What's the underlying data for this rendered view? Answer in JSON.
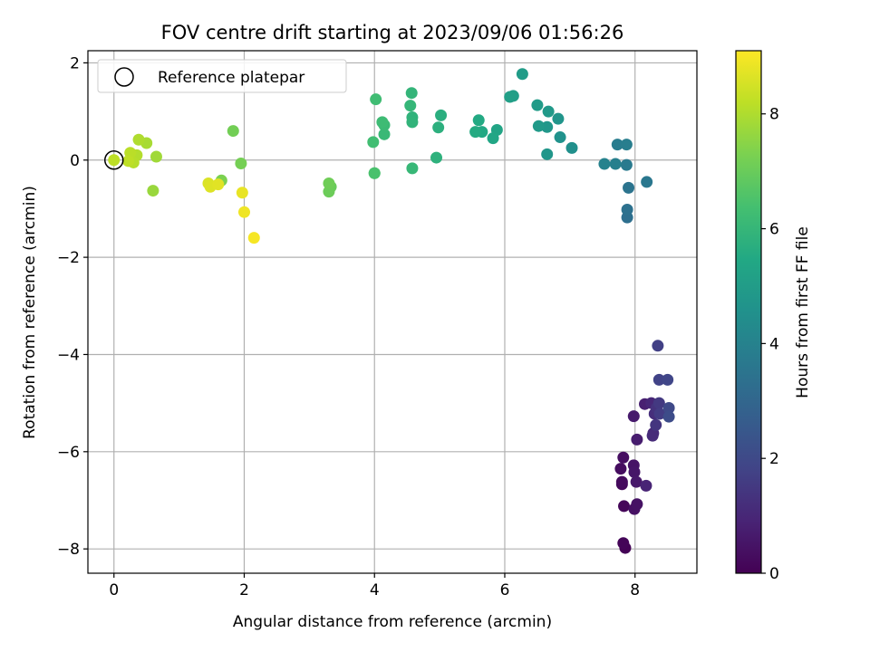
{
  "chart_data": {
    "type": "scatter",
    "title": "FOV centre drift starting at 2023/09/06 01:56:26",
    "xlabel": "Angular distance from reference (arcmin)",
    "ylabel": "Rotation from reference (arcmin)",
    "xlim": [
      -0.4,
      8.95
    ],
    "ylim": [
      -8.5,
      2.25
    ],
    "xticks": [
      0,
      2,
      4,
      6,
      8
    ],
    "xtick_labels": [
      "0",
      "2",
      "4",
      "6",
      "8"
    ],
    "yticks": [
      -8,
      -6,
      -4,
      -2,
      0,
      2
    ],
    "ytick_labels": [
      "−8",
      "−6",
      "−4",
      "−2",
      "0",
      "2"
    ],
    "grid": true,
    "legend": {
      "position": "upper-left",
      "entries": [
        "Reference platepar"
      ]
    },
    "reference_point": {
      "x": 0,
      "y": 0
    },
    "colorbar": {
      "label": "Hours from first FF file",
      "colormap": "viridis",
      "range": [
        0,
        9.1
      ],
      "ticks": [
        0,
        2,
        4,
        6,
        8
      ],
      "tick_labels": [
        "0",
        "2",
        "4",
        "6",
        "8"
      ]
    },
    "points": [
      {
        "x": 7.85,
        "y": -7.98,
        "c": 0.05
      },
      {
        "x": 7.82,
        "y": -7.88,
        "c": 0.1
      },
      {
        "x": 7.83,
        "y": -7.12,
        "c": 0.15
      },
      {
        "x": 7.8,
        "y": -6.67,
        "c": 0.2
      },
      {
        "x": 7.8,
        "y": -6.62,
        "c": 0.25
      },
      {
        "x": 7.78,
        "y": -6.35,
        "c": 0.3
      },
      {
        "x": 7.82,
        "y": -6.12,
        "c": 0.35
      },
      {
        "x": 7.99,
        "y": -7.18,
        "c": 0.4
      },
      {
        "x": 8.03,
        "y": -7.08,
        "c": 0.45
      },
      {
        "x": 7.98,
        "y": -6.28,
        "c": 0.5
      },
      {
        "x": 7.99,
        "y": -6.42,
        "c": 0.55
      },
      {
        "x": 8.02,
        "y": -6.62,
        "c": 0.6
      },
      {
        "x": 7.98,
        "y": -5.27,
        "c": 0.65
      },
      {
        "x": 8.03,
        "y": -5.75,
        "c": 0.72
      },
      {
        "x": 8.15,
        "y": -5.02,
        "c": 0.8
      },
      {
        "x": 8.17,
        "y": -6.7,
        "c": 0.9
      },
      {
        "x": 8.25,
        "y": -5.0,
        "c": 1.0
      },
      {
        "x": 8.28,
        "y": -5.62,
        "c": 1.05
      },
      {
        "x": 8.27,
        "y": -5.67,
        "c": 1.1
      },
      {
        "x": 8.3,
        "y": -5.22,
        "c": 1.2
      },
      {
        "x": 8.33,
        "y": -5.1,
        "c": 1.3
      },
      {
        "x": 8.32,
        "y": -5.45,
        "c": 1.4
      },
      {
        "x": 8.37,
        "y": -5.0,
        "c": 1.5
      },
      {
        "x": 8.38,
        "y": -5.22,
        "c": 1.6
      },
      {
        "x": 8.35,
        "y": -3.82,
        "c": 1.7
      },
      {
        "x": 8.37,
        "y": -4.52,
        "c": 1.8
      },
      {
        "x": 8.5,
        "y": -4.52,
        "c": 1.9
      },
      {
        "x": 8.52,
        "y": -5.1,
        "c": 2.0
      },
      {
        "x": 8.52,
        "y": -5.28,
        "c": 2.1
      },
      {
        "x": 7.88,
        "y": -1.18,
        "c": 3.3
      },
      {
        "x": 7.88,
        "y": -1.02,
        "c": 3.4
      },
      {
        "x": 7.9,
        "y": -0.57,
        "c": 3.5
      },
      {
        "x": 8.18,
        "y": -0.45,
        "c": 3.6
      },
      {
        "x": 7.87,
        "y": -0.1,
        "c": 3.7
      },
      {
        "x": 7.73,
        "y": 0.32,
        "c": 3.8
      },
      {
        "x": 7.87,
        "y": 0.32,
        "c": 3.85
      },
      {
        "x": 7.7,
        "y": -0.08,
        "c": 3.9
      },
      {
        "x": 7.53,
        "y": -0.08,
        "c": 4.0
      },
      {
        "x": 7.03,
        "y": 0.25,
        "c": 4.5
      },
      {
        "x": 6.85,
        "y": 0.47,
        "c": 4.6
      },
      {
        "x": 6.82,
        "y": 0.85,
        "c": 4.7
      },
      {
        "x": 6.65,
        "y": 0.12,
        "c": 4.75
      },
      {
        "x": 6.65,
        "y": 0.68,
        "c": 4.8
      },
      {
        "x": 6.67,
        "y": 1.0,
        "c": 4.85
      },
      {
        "x": 6.52,
        "y": 0.7,
        "c": 4.9
      },
      {
        "x": 6.5,
        "y": 1.13,
        "c": 4.95
      },
      {
        "x": 6.27,
        "y": 1.77,
        "c": 5.0
      },
      {
        "x": 6.13,
        "y": 1.32,
        "c": 5.05
      },
      {
        "x": 6.08,
        "y": 1.3,
        "c": 5.1
      },
      {
        "x": 5.88,
        "y": 0.62,
        "c": 5.3
      },
      {
        "x": 5.82,
        "y": 0.45,
        "c": 5.4
      },
      {
        "x": 5.65,
        "y": 0.58,
        "c": 5.45
      },
      {
        "x": 5.6,
        "y": 0.82,
        "c": 5.5
      },
      {
        "x": 5.55,
        "y": 0.58,
        "c": 5.55
      },
      {
        "x": 5.02,
        "y": 0.92,
        "c": 5.7
      },
      {
        "x": 4.98,
        "y": 0.67,
        "c": 5.75
      },
      {
        "x": 4.95,
        "y": 0.05,
        "c": 5.8
      },
      {
        "x": 4.58,
        "y": 0.88,
        "c": 5.85
      },
      {
        "x": 4.58,
        "y": 0.78,
        "c": 5.9
      },
      {
        "x": 4.57,
        "y": 1.38,
        "c": 5.95
      },
      {
        "x": 4.55,
        "y": 1.12,
        "c": 6.0
      },
      {
        "x": 4.58,
        "y": -0.17,
        "c": 6.05
      },
      {
        "x": 4.15,
        "y": 0.53,
        "c": 6.1
      },
      {
        "x": 4.15,
        "y": 0.72,
        "c": 6.15
      },
      {
        "x": 4.12,
        "y": 0.78,
        "c": 6.2
      },
      {
        "x": 4.02,
        "y": 1.25,
        "c": 6.25
      },
      {
        "x": 3.98,
        "y": 0.37,
        "c": 6.3
      },
      {
        "x": 4.0,
        "y": -0.27,
        "c": 6.4
      },
      {
        "x": 4.0,
        "y": -0.27,
        "c": 6.45
      },
      {
        "x": 3.33,
        "y": -0.55,
        "c": 7.0
      },
      {
        "x": 3.3,
        "y": -0.65,
        "c": 7.05
      },
      {
        "x": 3.3,
        "y": -0.48,
        "c": 7.1
      },
      {
        "x": 1.83,
        "y": 0.6,
        "c": 7.15
      },
      {
        "x": 1.95,
        "y": -0.07,
        "c": 7.2
      },
      {
        "x": 1.65,
        "y": -0.42,
        "c": 7.3
      },
      {
        "x": 0.6,
        "y": -0.63,
        "c": 7.7
      },
      {
        "x": 0.65,
        "y": 0.07,
        "c": 7.8
      },
      {
        "x": 0.5,
        "y": 0.35,
        "c": 7.9
      },
      {
        "x": 0.38,
        "y": 0.42,
        "c": 8.0
      },
      {
        "x": 0.35,
        "y": 0.1,
        "c": 8.05
      },
      {
        "x": 0.3,
        "y": -0.05,
        "c": 8.1
      },
      {
        "x": 0.25,
        "y": 0.15,
        "c": 8.15
      },
      {
        "x": 0.22,
        "y": -0.02,
        "c": 8.2
      },
      {
        "x": 1.45,
        "y": -0.48,
        "c": 8.6
      },
      {
        "x": 1.48,
        "y": -0.55,
        "c": 8.65
      },
      {
        "x": 1.6,
        "y": -0.5,
        "c": 8.7
      },
      {
        "x": 1.97,
        "y": -0.67,
        "c": 8.8
      },
      {
        "x": 2.0,
        "y": -1.07,
        "c": 8.9
      },
      {
        "x": 2.15,
        "y": -1.6,
        "c": 9.0
      }
    ]
  }
}
